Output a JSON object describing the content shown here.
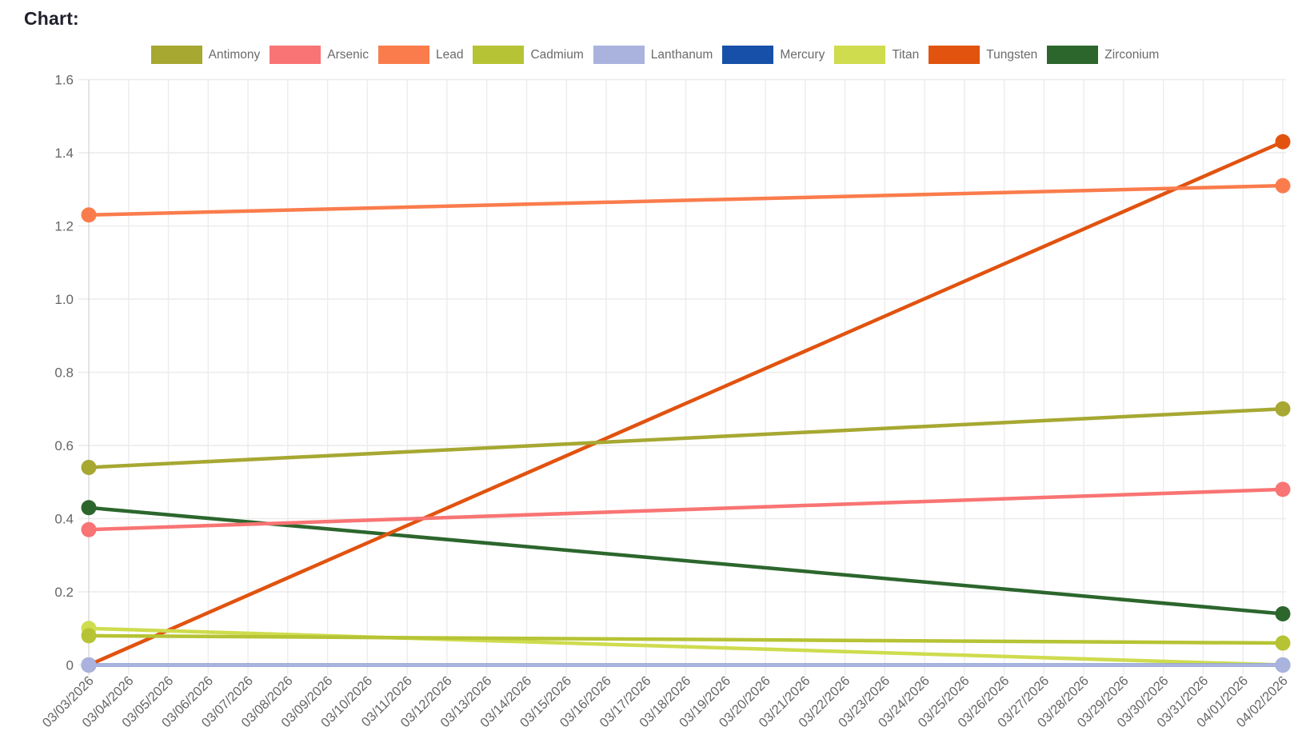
{
  "page": {
    "title": "Chart:"
  },
  "chart_data": {
    "type": "line",
    "title": "Chart:",
    "legend_position": "top",
    "grid": true,
    "ylim": [
      0,
      1.6
    ],
    "y_ticks": [
      1.6,
      1.4,
      1.2,
      1.0,
      0.8,
      0.6,
      0.4,
      0.2,
      0
    ],
    "y_tick_labels": [
      "1.6",
      "1.4",
      "1.2",
      "1.0",
      "0.8",
      "0.6",
      "0.4",
      "0.2",
      "0"
    ],
    "x_labels": [
      "03/03/2026",
      "03/04/2026",
      "03/05/2026",
      "03/06/2026",
      "03/07/2026",
      "03/08/2026",
      "03/09/2026",
      "03/10/2026",
      "03/11/2026",
      "03/12/2026",
      "03/13/2026",
      "03/14/2026",
      "03/15/2026",
      "03/16/2026",
      "03/17/2026",
      "03/18/2026",
      "03/19/2026",
      "03/20/2026",
      "03/21/2026",
      "03/22/2026",
      "03/23/2026",
      "03/24/2026",
      "03/25/2026",
      "03/26/2026",
      "03/27/2026",
      "03/28/2026",
      "03/29/2026",
      "03/30/2026",
      "03/31/2026",
      "04/01/2026",
      "04/02/2026"
    ],
    "point_dates": [
      "03/03/2026",
      "04/02/2026"
    ],
    "series": [
      {
        "name": "Antimony",
        "color": "#a6a832",
        "values": [
          0.54,
          0.7
        ]
      },
      {
        "name": "Arsenic",
        "color": "#f97474",
        "values": [
          0.37,
          0.48
        ]
      },
      {
        "name": "Lead",
        "color": "#fa7c4c",
        "values": [
          1.23,
          1.31
        ]
      },
      {
        "name": "Cadmium",
        "color": "#b6c334",
        "values": [
          0.08,
          0.06
        ]
      },
      {
        "name": "Lanthanum",
        "color": "#a9b3de",
        "values": [
          0,
          0
        ]
      },
      {
        "name": "Mercury",
        "color": "#1650a8",
        "values": [
          0,
          0
        ]
      },
      {
        "name": "Titan",
        "color": "#cedc4e",
        "values": [
          0.1,
          0
        ]
      },
      {
        "name": "Tungsten",
        "color": "#e1530f",
        "values": [
          0,
          1.43
        ]
      },
      {
        "name": "Zirconium",
        "color": "#2c662d",
        "values": [
          0.43,
          0.14
        ]
      }
    ]
  }
}
